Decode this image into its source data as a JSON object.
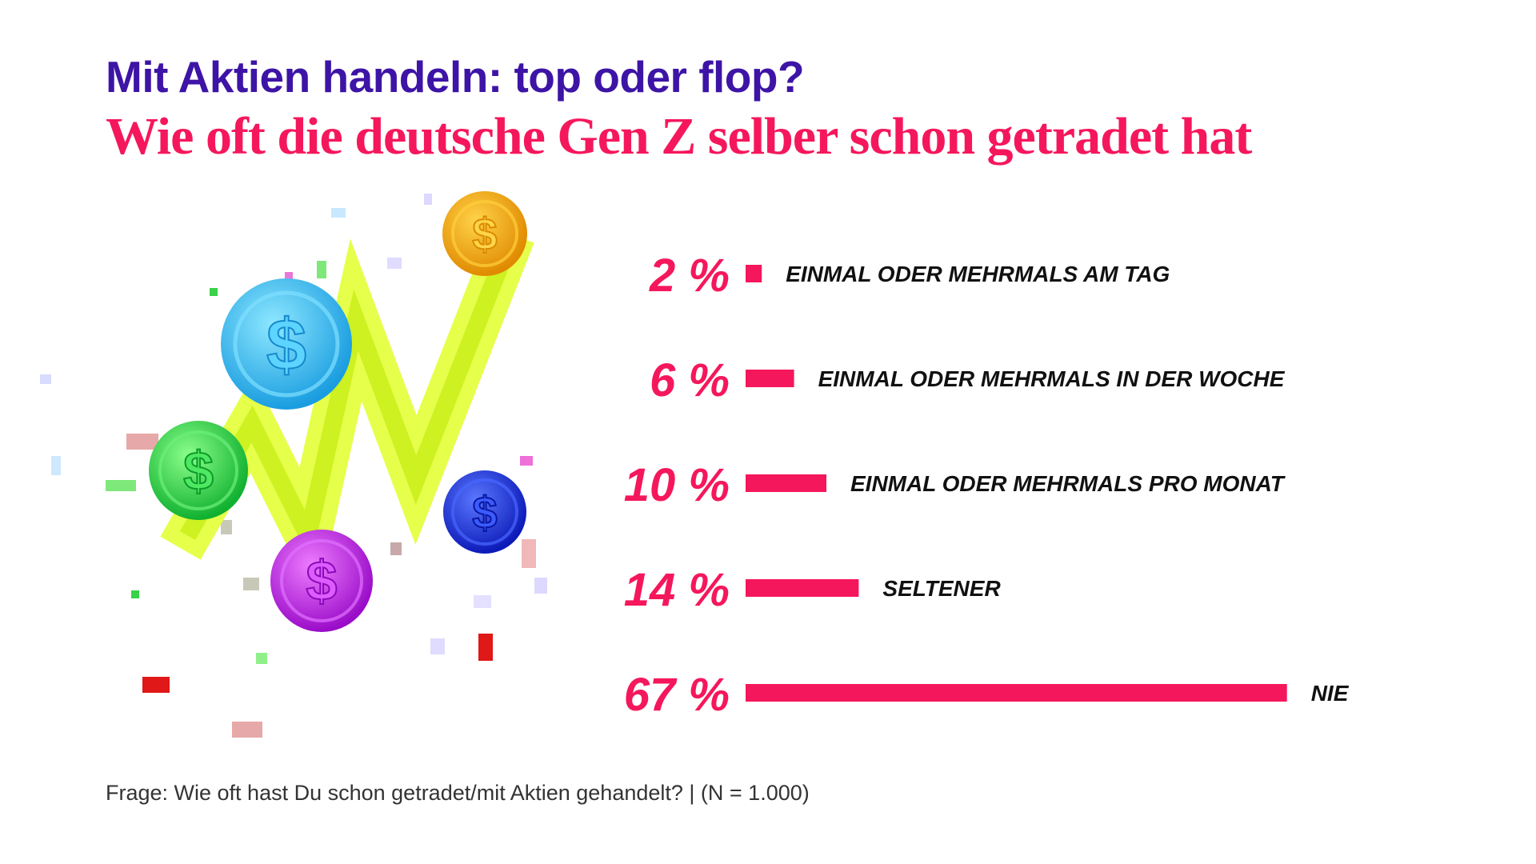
{
  "header": {
    "title": "Mit Aktien handeln: top oder flop?",
    "subtitle": "Wie oft die deutsche Gen Z selber schon getradet hat"
  },
  "chart_data": {
    "type": "bar",
    "orientation": "horizontal",
    "unit": "%",
    "categories": [
      "EINMAL ODER MEHRMALS AM TAG",
      "EINMAL ODER MEHRMALS IN DER WOCHE",
      "EINMAL ODER MEHRMALS PRO MONAT",
      "SELTENER",
      "NIE"
    ],
    "values": [
      2,
      6,
      10,
      14,
      67
    ],
    "value_labels": [
      "2 %",
      "6 %",
      "10 %",
      "14 %",
      "67 %"
    ],
    "bar_color": "#f5175c",
    "grid": false,
    "legend": "none"
  },
  "illustration": {
    "icon": "coins-and-rising-arrow-illustration",
    "coin_colors": [
      "#f5a000",
      "#34c4f0",
      "#22d44a",
      "#1a2fe0",
      "#c414e8"
    ],
    "arrow_color": "#d4ff2e"
  },
  "footnote": "Frage: Wie oft hast Du schon getradet/mit Aktien gehandelt? | (N = 1.000)",
  "colors": {
    "title": "#3d14a6",
    "subtitle": "#f5175c",
    "text": "#111111"
  }
}
